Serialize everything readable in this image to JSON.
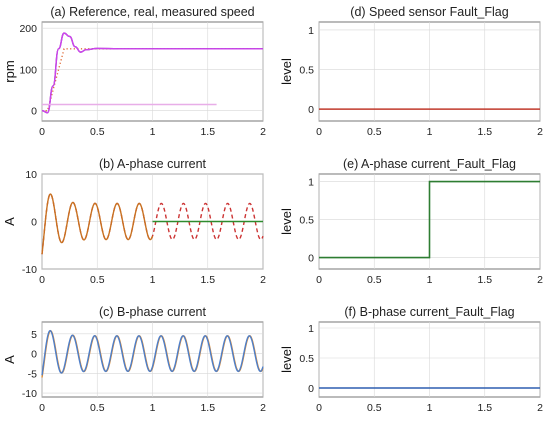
{
  "chart_data": [
    {
      "id": "a",
      "type": "line",
      "title": "(a) Reference, real, measured speed",
      "ylabel": "rpm",
      "xlim": [
        0,
        2
      ],
      "ylim": [
        -25,
        215
      ],
      "xticks": [
        "0",
        "0.5",
        "1",
        "1.5",
        "2"
      ],
      "yticks": [
        "0",
        "100",
        "200"
      ],
      "ytick_values": [
        0,
        100,
        200
      ],
      "grid": true,
      "series": [
        {
          "role": "reference",
          "color": "#e06c3a",
          "style": "dotted",
          "x": [
            0,
            0.05,
            0.2,
            2
          ],
          "y": [
            0,
            0,
            150,
            150
          ]
        },
        {
          "role": "real",
          "color": "#7e2f8e",
          "style": "solid",
          "x": [
            0,
            0.05,
            0.1,
            0.15,
            0.2,
            0.25,
            0.3,
            0.35,
            0.4,
            0.5,
            0.7,
            1.0,
            1.5,
            2.0
          ],
          "y": [
            0,
            -5,
            60,
            150,
            188,
            180,
            155,
            142,
            148,
            151,
            150,
            150,
            150,
            150
          ]
        },
        {
          "role": "measured",
          "color": "#cc44ee",
          "style": "solid",
          "x": [
            0,
            0.05,
            0.1,
            0.15,
            0.2,
            0.25,
            0.3,
            0.35,
            0.4,
            0.5,
            0.7,
            1.0,
            1.5,
            2.0
          ],
          "y": [
            0,
            -5,
            60,
            150,
            188,
            180,
            155,
            142,
            148,
            151,
            150,
            150,
            150,
            150
          ]
        },
        {
          "role": "extra",
          "color": "#e8aee8",
          "style": "solid",
          "x": [
            0,
            1.58
          ],
          "y": [
            15,
            15
          ]
        }
      ]
    },
    {
      "id": "b",
      "type": "line",
      "title": "(b) A-phase current",
      "ylabel": "A",
      "xlim": [
        0,
        2
      ],
      "ylim": [
        -10,
        10
      ],
      "xticks": [
        "0",
        "0.5",
        "1",
        "1.5",
        "2"
      ],
      "yticks": [
        "-10",
        "0",
        "10"
      ],
      "ytick_values": [
        -10,
        0,
        10
      ],
      "grid": true,
      "waveform": {
        "period": 0.2,
        "steady_amplitude": 3.8,
        "transient_peaks": [
          8.5,
          -8.3,
          6.5
        ],
        "fault_time": 1.0
      },
      "series": [
        {
          "role": "reference",
          "color": "#cc3333",
          "style": "dashed",
          "x_range": [
            0,
            2
          ]
        },
        {
          "role": "measured",
          "color": "#c87222",
          "style": "solid",
          "x_range": [
            0,
            1
          ]
        },
        {
          "role": "faulted",
          "color": "#2e8b2e",
          "style": "solid",
          "x_range": [
            1,
            2
          ],
          "value": 0
        }
      ]
    },
    {
      "id": "c",
      "type": "line",
      "title": "(c) B-phase current",
      "ylabel": "A",
      "xlim": [
        0,
        2
      ],
      "ylim": [
        -11,
        8
      ],
      "xticks": [
        "0",
        "0.5",
        "1",
        "1.5",
        "2"
      ],
      "yticks": [
        "-10",
        "-5",
        "0",
        "5"
      ],
      "ytick_values": [
        -10,
        -5,
        0,
        5
      ],
      "grid": true,
      "waveform": {
        "period": 0.2,
        "steady_amplitude": 4.5,
        "transient_peaks": [
          7.5,
          -8.5,
          6.5
        ]
      },
      "series": [
        {
          "role": "reference",
          "color": "#e08b2f",
          "style": "solid",
          "x_range": [
            0,
            2
          ]
        },
        {
          "role": "measured",
          "color": "#4f7fc8",
          "style": "solid",
          "x_range": [
            0,
            2
          ]
        }
      ]
    },
    {
      "id": "d",
      "type": "line",
      "title": "(d) Speed sensor Fault_Flag",
      "ylabel": "level",
      "xlim": [
        0,
        2
      ],
      "ylim": [
        -0.15,
        1.1
      ],
      "xticks": [
        "0",
        "0.5",
        "1",
        "1.5",
        "2"
      ],
      "yticks": [
        "0",
        "0.5",
        "1"
      ],
      "ytick_values": [
        0,
        0.5,
        1
      ],
      "grid": true,
      "series": [
        {
          "role": "flag",
          "color": "#c0392b",
          "style": "solid",
          "x": [
            0,
            2
          ],
          "y": [
            0,
            0
          ]
        }
      ]
    },
    {
      "id": "e",
      "type": "line",
      "title": "(e) A-phase current_Fault_Flag",
      "ylabel": "level",
      "xlim": [
        0,
        2
      ],
      "ylim": [
        -0.15,
        1.1
      ],
      "xticks": [
        "0",
        "0.5",
        "1",
        "1.5",
        "2"
      ],
      "yticks": [
        "0",
        "0.5",
        "1"
      ],
      "ytick_values": [
        0,
        0.5,
        1
      ],
      "grid": true,
      "series": [
        {
          "role": "flag",
          "color": "#2e7d32",
          "style": "solid",
          "x": [
            0,
            1,
            1,
            2
          ],
          "y": [
            0,
            0,
            1,
            1
          ]
        }
      ]
    },
    {
      "id": "f",
      "type": "line",
      "title": "(f) B-phase current_Fault_Flag",
      "ylabel": "level",
      "xlim": [
        0,
        2
      ],
      "ylim": [
        -0.15,
        1.1
      ],
      "xticks": [
        "0",
        "0.5",
        "1",
        "1.5",
        "2"
      ],
      "yticks": [
        "0",
        "0.5",
        "1"
      ],
      "ytick_values": [
        0,
        0.5,
        1
      ],
      "grid": true,
      "series": [
        {
          "role": "flag",
          "color": "#2f5fb0",
          "style": "solid",
          "x": [
            0,
            2
          ],
          "y": [
            0,
            0
          ]
        }
      ]
    }
  ]
}
